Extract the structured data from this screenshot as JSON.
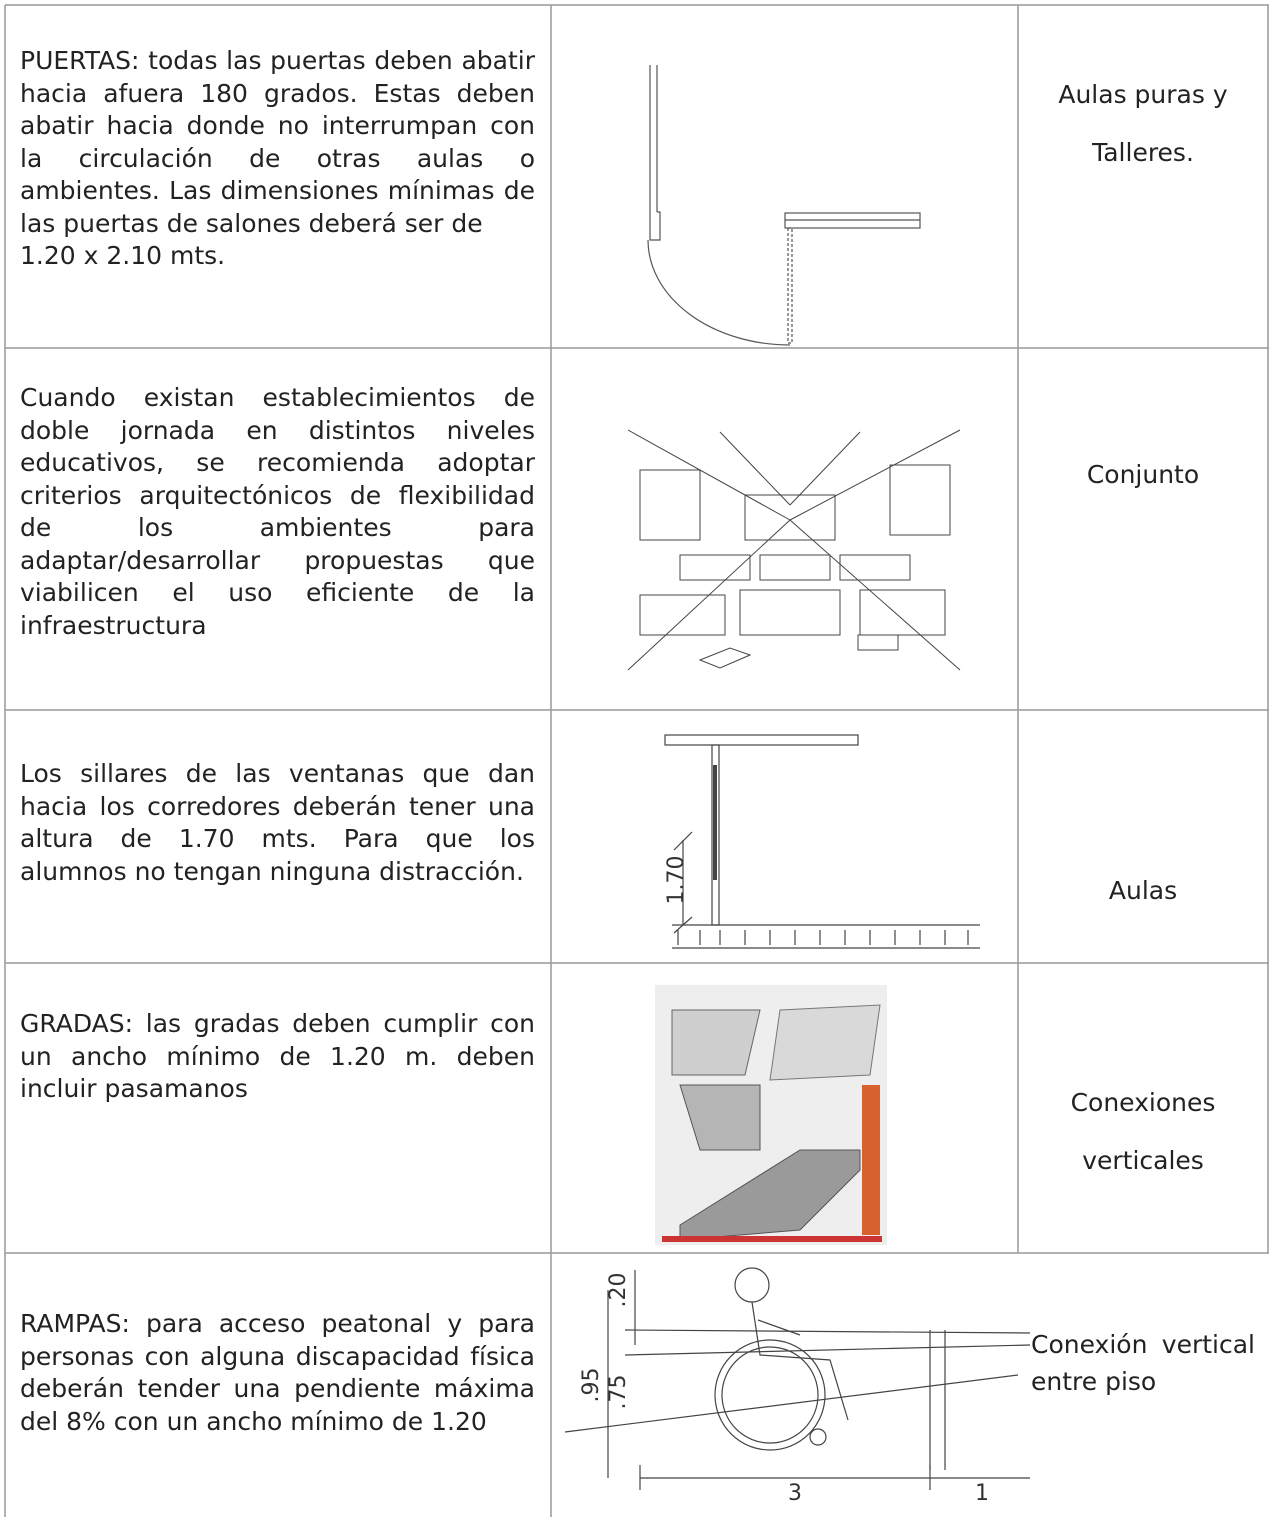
{
  "table": {
    "rows": [
      {
        "description": [
          "PUERTAS: todas las puertas deben abatir hacia afuera 180 grados. Estas deben abatir hacia donde no interrumpan con la circulación de otras aulas o ambientes. Las dimensiones mínimas de las puertas de salones deberá ser de",
          "1.20 x 2.10 mts."
        ],
        "area": [
          "Aulas puras y",
          "Talleres."
        ]
      },
      {
        "description": [
          "Cuando existan establecimientos de doble jornada en distintos niveles educativos, se recomienda adoptar criterios arquitectónicos de flexibilidad de los ambientes para adaptar/desarrollar propuestas que viabilicen el uso eficiente de la infraestructura"
        ],
        "area": [
          "Conjunto"
        ]
      },
      {
        "description": [
          "Los sillares de las ventanas que dan hacia los corredores deberán tener una altura de 1.70  mts. Para que los alumnos no tengan ninguna distracción."
        ],
        "area": [
          "Aulas"
        ],
        "figure_labels": [
          "1.70"
        ]
      },
      {
        "description": [
          "GRADAS: las gradas deben cumplir con un ancho mínimo de 1.20 m. deben incluir pasamanos"
        ],
        "area": [
          "Conexiones",
          "verticales"
        ]
      },
      {
        "description": [
          "RAMPAS: para acceso peatonal y para personas con alguna discapacidad física deberán tender una pendiente máxima del 8% con un ancho mínimo de 1.20"
        ],
        "area": [
          "Conexión vertical entre piso"
        ],
        "figure_labels": [
          ".20",
          ".95",
          ".75",
          "3",
          "1"
        ]
      }
    ]
  }
}
